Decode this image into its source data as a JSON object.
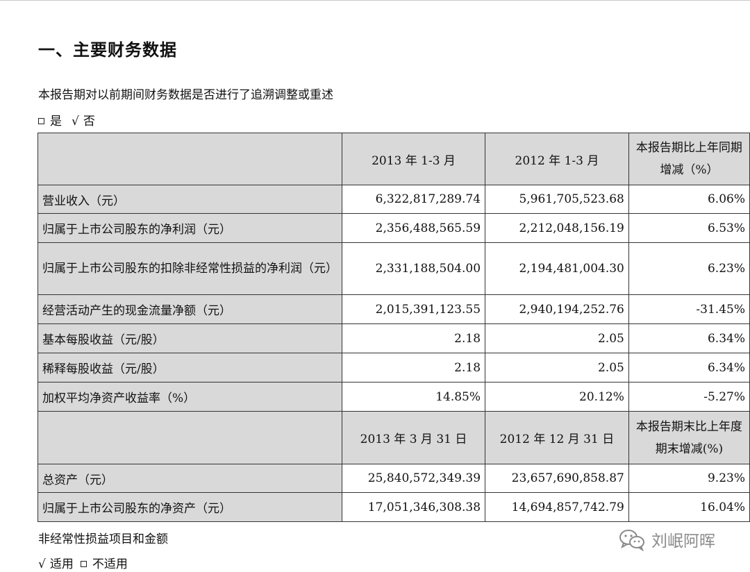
{
  "heading": "一、主要财务数据",
  "question": "本报告期对以前期间财务数据是否进行了追溯调整或重述",
  "restate_options": {
    "yes": "是",
    "no": "否"
  },
  "headers_period": [
    "",
    "2013 年 1-3 月",
    "2012 年 1-3 月",
    "本报告期比上年同期增减（%）"
  ],
  "rows_period": [
    {
      "label": "营业收入（元）",
      "current": "6,322,817,289.74",
      "prior": "5,961,705,523.68",
      "change": "6.06%"
    },
    {
      "label": "归属于上市公司股东的净利润（元）",
      "current": "2,356,488,565.59",
      "prior": "2,212,048,156.19",
      "change": "6.53%"
    },
    {
      "label": "归属于上市公司股东的扣除非经常性损益的净利润（元）",
      "current": "2,331,188,504.00",
      "prior": "2,194,481,004.30",
      "change": "6.23%"
    },
    {
      "label": "经营活动产生的现金流量净额（元）",
      "current": "2,015,391,123.55",
      "prior": "2,940,194,252.76",
      "change": "-31.45%"
    },
    {
      "label": "基本每股收益（元/股）",
      "current": "2.18",
      "prior": "2.05",
      "change": "6.34%"
    },
    {
      "label": "稀释每股收益（元/股）",
      "current": "2.18",
      "prior": "2.05",
      "change": "6.34%"
    },
    {
      "label": "加权平均净资产收益率（%）",
      "current": "14.85%",
      "prior": "20.12%",
      "change": "-5.27%"
    }
  ],
  "headers_balance": [
    "",
    "2013 年 3 月 31 日",
    "2012 年 12 月 31 日",
    "本报告期末比上年度期末增减(%)"
  ],
  "rows_balance": [
    {
      "label": "总资产（元）",
      "current": "25,840,572,349.39",
      "prior": "23,657,690,858.87",
      "change": "9.23%"
    },
    {
      "label": "归属于上市公司股东的净资产（元）",
      "current": "17,051,346,308.38",
      "prior": "14,694,857,742.79",
      "change": "16.04%"
    }
  ],
  "nonrecurring_title": "非经常性损益项目和金额",
  "applicable_options": {
    "applicable": "适用",
    "not_applicable": "不适用"
  },
  "watermark": {
    "text": "刘岷阿晖",
    "icon": "wechat-icon"
  }
}
